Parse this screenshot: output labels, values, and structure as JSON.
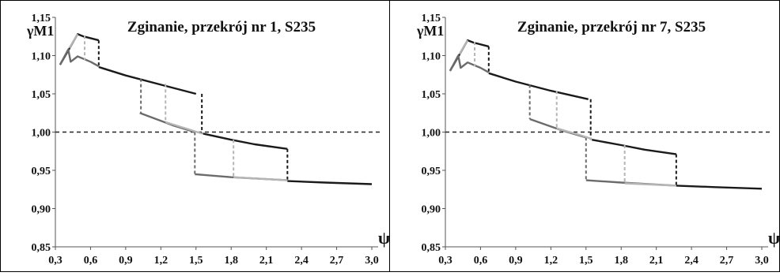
{
  "colors": {
    "black": "#1a1a1a",
    "dark_gray": "#6b6b6b",
    "light_gray": "#b5b5b5",
    "reference": "#222222"
  },
  "chart_data": [
    {
      "type": "line",
      "title": "Zginanie, przekrój nr 1, S235",
      "ylabel": "γM1",
      "xlabel": "ψ",
      "xlim": [
        0.3,
        3.0
      ],
      "ylim": [
        0.85,
        1.15
      ],
      "x_ticks": [
        "0,3",
        "0,6",
        "0,9",
        "1,2",
        "1,5",
        "1,8",
        "2,1",
        "2,4",
        "2,7",
        "3,0"
      ],
      "y_ticks": [
        "0,85",
        "0,90",
        "0,95",
        "1,00",
        "1,05",
        "1,10",
        "1,15"
      ],
      "reference_line": 1.0,
      "series": [
        {
          "color": "black",
          "style": "solid",
          "segments": [
            [
              [
                0.34,
                1.088
              ],
              [
                0.49,
                1.128
              ],
              [
                0.54,
                1.125
              ],
              [
                0.67,
                1.12
              ]
            ],
            [
              [
                0.67,
                1.085
              ],
              [
                0.9,
                1.074
              ],
              [
                1.2,
                1.062
              ],
              [
                1.5,
                1.05
              ]
            ],
            [
              [
                1.56,
                0.998
              ],
              [
                1.8,
                0.99
              ],
              [
                2.0,
                0.984
              ],
              [
                2.28,
                0.978
              ]
            ],
            [
              [
                2.28,
                0.936
              ],
              [
                2.6,
                0.934
              ],
              [
                3.0,
                0.932
              ]
            ]
          ],
          "drops": [
            [
              0.67,
              1.12,
              1.085
            ],
            [
              1.55,
              1.05,
              0.998
            ],
            [
              2.28,
              0.978,
              0.936
            ]
          ]
        },
        {
          "color": "dark_gray",
          "style": "solid",
          "segments": [
            [
              [
                0.34,
                1.088
              ],
              [
                0.41,
                1.108
              ],
              [
                0.43,
                1.092
              ],
              [
                0.49,
                1.099
              ],
              [
                0.6,
                1.092
              ],
              [
                0.67,
                1.086
              ]
            ],
            [
              [
                1.02,
                1.025
              ],
              [
                1.3,
                1.009
              ],
              [
                1.49,
                1.0
              ]
            ],
            [
              [
                1.49,
                0.945
              ],
              [
                1.8,
                0.941
              ],
              [
                2.28,
                0.937
              ]
            ]
          ],
          "drops": [
            [
              1.03,
              1.07,
              1.025
            ],
            [
              1.49,
              1.0,
              0.945
            ]
          ]
        },
        {
          "color": "light_gray",
          "style": "solid",
          "segments": [
            [
              [
                0.42,
                1.11
              ],
              [
                0.49,
                1.128
              ]
            ],
            [
              [
                1.24,
                1.013
              ],
              [
                1.45,
                1.003
              ],
              [
                1.55,
                0.998
              ]
            ],
            [
              [
                1.82,
                0.941
              ],
              [
                2.28,
                0.937
              ]
            ]
          ],
          "drops": [
            [
              0.55,
              1.126,
              1.094
            ],
            [
              1.24,
              1.063,
              1.013
            ],
            [
              1.82,
              0.99,
              0.941
            ]
          ]
        }
      ]
    },
    {
      "type": "line",
      "title": "Zginanie, przekrój nr 7, S235",
      "ylabel": "γM1",
      "xlabel": "ψ",
      "xlim": [
        0.3,
        3.0
      ],
      "ylim": [
        0.85,
        1.15
      ],
      "x_ticks": [
        "0,3",
        "0,6",
        "0,9",
        "1,2",
        "1,5",
        "1,8",
        "2,1",
        "2,4",
        "2,7",
        "3,0"
      ],
      "y_ticks": [
        "0,85",
        "0,90",
        "0,95",
        "1,00",
        "1,05",
        "1,10",
        "1,15"
      ],
      "reference_line": 1.0,
      "series": [
        {
          "color": "black",
          "style": "solid",
          "segments": [
            [
              [
                0.34,
                1.08
              ],
              [
                0.49,
                1.12
              ],
              [
                0.54,
                1.117
              ],
              [
                0.67,
                1.112
              ]
            ],
            [
              [
                0.67,
                1.077
              ],
              [
                0.9,
                1.066
              ],
              [
                1.2,
                1.054
              ],
              [
                1.52,
                1.043
              ]
            ],
            [
              [
                1.55,
                0.99
              ],
              [
                1.8,
                0.983
              ],
              [
                2.0,
                0.977
              ],
              [
                2.27,
                0.971
              ]
            ],
            [
              [
                2.27,
                0.93
              ],
              [
                2.6,
                0.928
              ],
              [
                3.0,
                0.926
              ]
            ]
          ],
          "drops": [
            [
              0.67,
              1.112,
              1.077
            ],
            [
              1.54,
              1.043,
              0.99
            ],
            [
              2.27,
              0.971,
              0.93
            ]
          ]
        },
        {
          "color": "dark_gray",
          "style": "solid",
          "segments": [
            [
              [
                0.34,
                1.08
              ],
              [
                0.41,
                1.1
              ],
              [
                0.43,
                1.084
              ],
              [
                0.49,
                1.091
              ],
              [
                0.6,
                1.084
              ],
              [
                0.67,
                1.078
              ]
            ],
            [
              [
                1.02,
                1.017
              ],
              [
                1.3,
                1.002
              ],
              [
                1.5,
                0.993
              ]
            ],
            [
              [
                1.5,
                0.937
              ],
              [
                1.8,
                0.934
              ],
              [
                2.27,
                0.93
              ]
            ]
          ],
          "drops": [
            [
              1.02,
              1.062,
              1.017
            ],
            [
              1.5,
              0.993,
              0.937
            ]
          ]
        },
        {
          "color": "light_gray",
          "style": "solid",
          "segments": [
            [
              [
                0.42,
                1.102
              ],
              [
                0.49,
                1.12
              ]
            ],
            [
              [
                1.25,
                1.005
              ],
              [
                1.45,
                0.996
              ],
              [
                1.55,
                0.991
              ]
            ],
            [
              [
                1.83,
                0.933
              ],
              [
                2.27,
                0.93
              ]
            ]
          ],
          "drops": [
            [
              0.55,
              1.118,
              1.086
            ],
            [
              1.25,
              1.054,
              1.005
            ],
            [
              1.83,
              0.983,
              0.933
            ]
          ]
        }
      ]
    }
  ]
}
